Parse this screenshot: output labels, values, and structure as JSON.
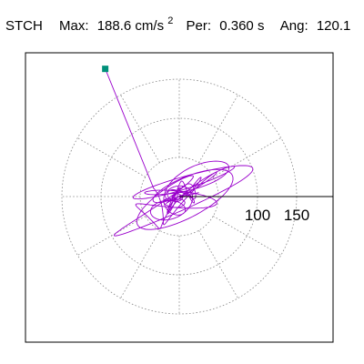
{
  "header": {
    "station": "STCH",
    "max_label": "Max:",
    "max_value": "188.6 cm/s",
    "max_exp": "2",
    "per_label": "Per:",
    "per_value": "0.360 s",
    "ang_label": "Ang:",
    "ang_value": "120.1"
  },
  "chart_data": {
    "type": "scatter",
    "title": "",
    "polar_ring_radii": [
      50,
      100,
      150
    ],
    "polar_spoke_step_deg": 30,
    "tick_labels": [
      "100",
      "150"
    ],
    "xlim": [
      -210,
      210
    ],
    "ylim": [
      -210,
      210
    ],
    "grid": true,
    "peak_value": 188.6,
    "peak_angle_deg": 120.1,
    "trace_color": "#9a00cc",
    "marker_color": "#00907a",
    "grid_color": "#888888"
  }
}
